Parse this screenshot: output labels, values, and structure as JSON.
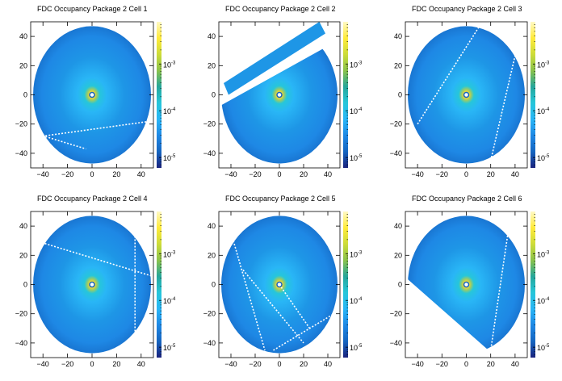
{
  "chart_data": [
    {
      "type": "heatmap",
      "title": "FDC Occupancy Package 2 Cell 1",
      "xlim": [
        -50,
        50
      ],
      "ylim": [
        -50,
        50
      ],
      "x_ticks": [
        -40,
        -20,
        0,
        20,
        40
      ],
      "y_ticks": [
        -40,
        -20,
        0,
        20,
        40
      ],
      "z_scale": "log",
      "zlim": [
        6e-06,
        0.008
      ],
      "z_tick_labels": [
        {
          "base": "10",
          "exp": "-3"
        },
        {
          "base": "10",
          "exp": "-4"
        },
        {
          "base": "10",
          "exp": "-5"
        }
      ],
      "colormap": [
        "#1a237e",
        "#1565c0",
        "#1e88e5",
        "#29b6f6",
        "#26c6da",
        "#26a69a",
        "#8bc34a",
        "#cddc39",
        "#ffeb3b",
        "#fff9c4"
      ],
      "active_region": {
        "shape": "ellipse",
        "cx": 0,
        "cy": 0,
        "rx": 48,
        "ry": 47
      },
      "peak_center": [
        0,
        0
      ],
      "dead_lines": [
        [
          [
            -48,
            -26
          ],
          [
            -5,
            -37
          ]
        ],
        [
          [
            -38,
            -28
          ],
          [
            48,
            -18
          ]
        ]
      ],
      "cut_polygon": null
    },
    {
      "type": "heatmap",
      "title": "FDC Occupancy Package 2 Cell 2",
      "xlim": [
        -50,
        50
      ],
      "ylim": [
        -50,
        50
      ],
      "x_ticks": [
        -40,
        -20,
        0,
        20,
        40
      ],
      "y_ticks": [
        -40,
        -20,
        0,
        20,
        40
      ],
      "z_scale": "log",
      "zlim": [
        6e-06,
        0.008
      ],
      "z_tick_labels": [
        {
          "base": "10",
          "exp": "-3"
        },
        {
          "base": "10",
          "exp": "-4"
        },
        {
          "base": "10",
          "exp": "-5"
        }
      ],
      "colormap": [
        "#1a237e",
        "#1565c0",
        "#1e88e5",
        "#29b6f6",
        "#26c6da",
        "#26a69a",
        "#8bc34a",
        "#cddc39",
        "#ffeb3b",
        "#fff9c4"
      ],
      "active_region": {
        "shape": "ellipse",
        "cx": 0,
        "cy": 0,
        "rx": 48,
        "ry": 47
      },
      "peak_center": [
        0,
        0
      ],
      "dead_lines": [],
      "cut_polygon": [
        [
          -50,
          -10
        ],
        [
          -50,
          50
        ],
        [
          50,
          50
        ],
        [
          50,
          38
        ],
        [
          -50,
          -8
        ]
      ],
      "strip_polygon": [
        [
          -46,
          8
        ],
        [
          -42,
          0
        ],
        [
          38,
          42
        ],
        [
          33,
          50
        ]
      ]
    },
    {
      "type": "heatmap",
      "title": "FDC Occupancy Package 2 Cell 3",
      "xlim": [
        -50,
        50
      ],
      "ylim": [
        -50,
        50
      ],
      "x_ticks": [
        -40,
        -20,
        0,
        20,
        40
      ],
      "y_ticks": [
        -40,
        -20,
        0,
        20,
        40
      ],
      "z_scale": "log",
      "zlim": [
        6e-06,
        0.008
      ],
      "z_tick_labels": [
        {
          "base": "10",
          "exp": "-3"
        },
        {
          "base": "10",
          "exp": "-4"
        },
        {
          "base": "10",
          "exp": "-5"
        }
      ],
      "colormap": [
        "#1a237e",
        "#1565c0",
        "#1e88e5",
        "#29b6f6",
        "#26c6da",
        "#26a69a",
        "#8bc34a",
        "#cddc39",
        "#ffeb3b",
        "#fff9c4"
      ],
      "active_region": {
        "shape": "ellipse",
        "cx": 0,
        "cy": 0,
        "rx": 48,
        "ry": 47
      },
      "peak_center": [
        0,
        0
      ],
      "dead_lines": [
        [
          [
            -40,
            -20
          ],
          [
            10,
            46
          ]
        ],
        [
          [
            20,
            -45
          ],
          [
            42,
            34
          ]
        ]
      ],
      "cut_polygon": null
    },
    {
      "type": "heatmap",
      "title": "FDC Occupancy Package 2 Cell 4",
      "xlim": [
        -50,
        50
      ],
      "ylim": [
        -50,
        50
      ],
      "x_ticks": [
        -40,
        -20,
        0,
        20,
        40
      ],
      "y_ticks": [
        -40,
        -20,
        0,
        20,
        40
      ],
      "z_scale": "log",
      "zlim": [
        6e-06,
        0.008
      ],
      "z_tick_labels": [
        {
          "base": "10",
          "exp": "-3"
        },
        {
          "base": "10",
          "exp": "-4"
        },
        {
          "base": "10",
          "exp": "-5"
        }
      ],
      "colormap": [
        "#1a237e",
        "#1565c0",
        "#1e88e5",
        "#29b6f6",
        "#26c6da",
        "#26a69a",
        "#8bc34a",
        "#cddc39",
        "#ffeb3b",
        "#fff9c4"
      ],
      "active_region": {
        "shape": "ellipse",
        "cx": 0,
        "cy": 0,
        "rx": 48,
        "ry": 47
      },
      "peak_center": [
        0,
        0
      ],
      "dead_lines": [
        [
          [
            -46,
            30
          ],
          [
            48,
            6
          ]
        ],
        [
          [
            35,
            42
          ],
          [
            35,
            -40
          ]
        ]
      ],
      "cut_polygon": null
    },
    {
      "type": "heatmap",
      "title": "FDC Occupancy Package 2 Cell 5",
      "xlim": [
        -50,
        50
      ],
      "ylim": [
        -50,
        50
      ],
      "x_ticks": [
        -40,
        -20,
        0,
        20,
        40
      ],
      "y_ticks": [
        -40,
        -20,
        0,
        20,
        40
      ],
      "z_scale": "log",
      "zlim": [
        6e-06,
        0.008
      ],
      "z_tick_labels": [
        {
          "base": "10",
          "exp": "-3"
        },
        {
          "base": "10",
          "exp": "-4"
        },
        {
          "base": "10",
          "exp": "-5"
        }
      ],
      "colormap": [
        "#1a237e",
        "#1565c0",
        "#1e88e5",
        "#29b6f6",
        "#26c6da",
        "#26a69a",
        "#8bc34a",
        "#cddc39",
        "#ffeb3b",
        "#fff9c4"
      ],
      "active_region": {
        "shape": "ellipse",
        "cx": 0,
        "cy": 0,
        "rx": 48,
        "ry": 47
      },
      "peak_center": [
        0,
        0
      ],
      "dead_lines": [
        [
          [
            -38,
            30
          ],
          [
            -12,
            -45
          ]
        ],
        [
          [
            -5,
            -45
          ],
          [
            45,
            -20
          ]
        ],
        [
          [
            -30,
            10
          ],
          [
            20,
            -40
          ]
        ],
        [
          [
            0,
            0
          ],
          [
            25,
            -30
          ]
        ]
      ],
      "cut_polygon": null
    },
    {
      "type": "heatmap",
      "title": "FDC Occupancy Package 2 Cell 6",
      "xlim": [
        -50,
        50
      ],
      "ylim": [
        -50,
        50
      ],
      "x_ticks": [
        -40,
        -20,
        0,
        20,
        40
      ],
      "y_ticks": [
        -40,
        -20,
        0,
        20,
        40
      ],
      "z_scale": "log",
      "zlim": [
        6e-06,
        0.008
      ],
      "z_tick_labels": [
        {
          "base": "10",
          "exp": "-3"
        },
        {
          "base": "10",
          "exp": "-4"
        },
        {
          "base": "10",
          "exp": "-5"
        }
      ],
      "colormap": [
        "#1a237e",
        "#1565c0",
        "#1e88e5",
        "#29b6f6",
        "#26c6da",
        "#26a69a",
        "#8bc34a",
        "#cddc39",
        "#ffeb3b",
        "#fff9c4"
      ],
      "active_region": {
        "shape": "ellipse",
        "cx": 0,
        "cy": 0,
        "rx": 48,
        "ry": 47
      },
      "peak_center": [
        0,
        0
      ],
      "dead_lines": [
        [
          [
            35,
            40
          ],
          [
            20,
            -45
          ]
        ]
      ],
      "cut_polygon": [
        [
          -50,
          -50
        ],
        [
          -50,
          5
        ],
        [
          25,
          -50
        ]
      ]
    }
  ]
}
